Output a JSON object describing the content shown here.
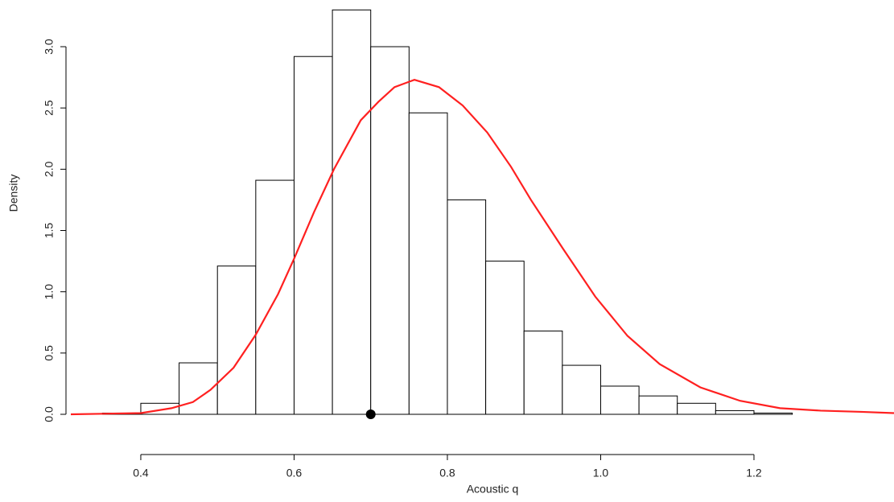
{
  "chart_data": {
    "type": "histogram",
    "xlabel": "Acoustic q",
    "ylabel": "Density",
    "bins": [
      0.35,
      0.4,
      0.45,
      0.5,
      0.55,
      0.6,
      0.65,
      0.7,
      0.75,
      0.8,
      0.85,
      0.9,
      0.95,
      1.0,
      1.05,
      1.1,
      1.15,
      1.2,
      1.25
    ],
    "values": [
      0.01,
      0.09,
      0.42,
      1.21,
      1.91,
      2.92,
      3.3,
      3.0,
      2.46,
      1.75,
      1.25,
      0.68,
      0.4,
      0.23,
      0.15,
      0.09,
      0.03,
      0.01
    ],
    "bar_color": "#ffffff",
    "edge_color": "#000000",
    "curve": {
      "color": "#ff2020",
      "x": [
        0.3087,
        0.4,
        0.44,
        0.468,
        0.491,
        0.521,
        0.55,
        0.579,
        0.6,
        0.626,
        0.652,
        0.687,
        0.71,
        0.731,
        0.757,
        0.789,
        0.82,
        0.852,
        0.883,
        0.909,
        0.951,
        0.993,
        1.035,
        1.077,
        1.13,
        1.182,
        1.234,
        1.287,
        1.34,
        1.3827
      ],
      "y": [
        0,
        0.01,
        0.05,
        0.1,
        0.2,
        0.38,
        0.65,
        0.98,
        1.27,
        1.65,
        2.0,
        2.4,
        2.55,
        2.67,
        2.73,
        2.67,
        2.52,
        2.3,
        2.02,
        1.75,
        1.35,
        0.96,
        0.64,
        0.41,
        0.22,
        0.11,
        0.05,
        0.03,
        0.02,
        0.01
      ]
    },
    "marker": {
      "x": 0.7,
      "y": 0,
      "color": "#000000"
    },
    "xlim": [
      0.3087,
      1.3827
    ],
    "ylim": [
      0,
      3.381
    ],
    "xticks": [
      0.4,
      0.6,
      0.8,
      {
        "value": 1,
        "label": "1.0"
      },
      1.2
    ],
    "yticks": [
      {
        "value": 0,
        "label": "0.0"
      },
      0.5,
      {
        "value": 1,
        "label": "1.0"
      },
      1.5,
      {
        "value": 2,
        "label": "2.0"
      },
      2.5,
      {
        "value": 3,
        "label": "3.0"
      }
    ]
  }
}
